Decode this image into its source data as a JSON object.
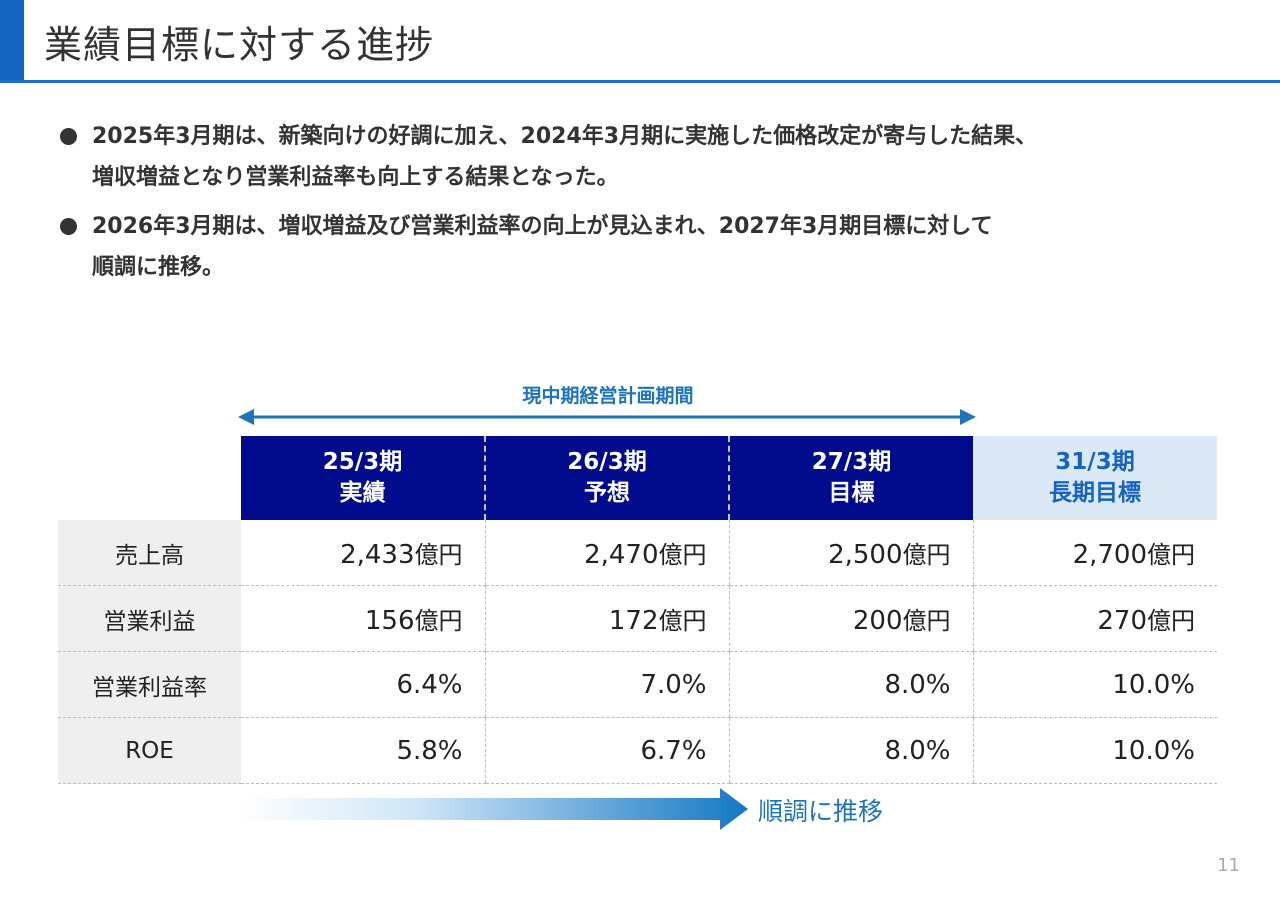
{
  "title": "業績目標に対する進捗",
  "bullets": [
    {
      "line1": "2025年3月期は、新築向けの好調に加え、2024年3月期に実施した価格改定が寄与した結果、",
      "line2": "増収増益となり営業利益率も向上する結果となった。"
    },
    {
      "line1": "2026年3月期は、増収増益及び営業利益率の向上が見込まれ、2027年3月期目標に対して",
      "line2": "順調に推移。"
    }
  ],
  "period_label": "現中期経営計画期間",
  "columns": [
    {
      "period": "25/3期",
      "type": "実績"
    },
    {
      "period": "26/3期",
      "type": "予想"
    },
    {
      "period": "27/3期",
      "type": "目標"
    },
    {
      "period": "31/3期",
      "type": "長期目標"
    }
  ],
  "rows": [
    {
      "label": "売上高",
      "values": [
        "2,433",
        "2,470",
        "2,500",
        "2,700"
      ],
      "unit": "億円"
    },
    {
      "label": "営業利益",
      "values": [
        "156",
        "172",
        "200",
        "270"
      ],
      "unit": "億円"
    },
    {
      "label": "営業利益率",
      "values": [
        "6.4%",
        "7.0%",
        "8.0%",
        "10.0%"
      ],
      "unit": ""
    },
    {
      "label": "ROE",
      "values": [
        "5.8%",
        "6.7%",
        "8.0%",
        "10.0%"
      ],
      "unit": ""
    }
  ],
  "trend_label": "順調に推移",
  "page_number": "11",
  "colors": {
    "accent": "#1565c0",
    "header_dark": "#000c8c",
    "header_light": "#dbe8f5",
    "arrow_blue": "#1d74b8"
  }
}
